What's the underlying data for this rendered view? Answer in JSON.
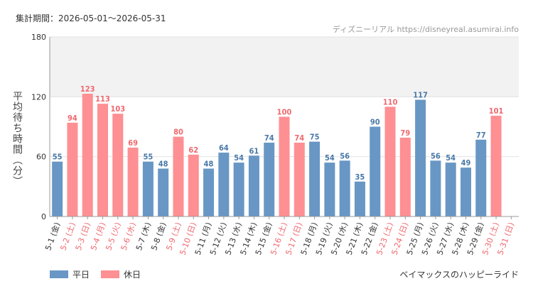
{
  "header": {
    "period_label": "集計期間：2026-05-01～2026-05-31",
    "source_label": "ディズニーリアル https://disneyreal.asumirai.info"
  },
  "footer": {
    "attraction_name": "ベイマックスのハッピーライド"
  },
  "chart_data": {
    "type": "bar",
    "ylabel": "平均待ち時間（分）",
    "ylim": [
      0,
      180
    ],
    "yticks": [
      0,
      60,
      120,
      180
    ],
    "highlight_band": [
      120,
      180
    ],
    "grid": true,
    "legend_position": "bottom-left",
    "colors": {
      "weekday": "#6897c5",
      "holiday": "#fe8f93"
    },
    "legend": [
      {
        "key": "weekday",
        "label": "平日"
      },
      {
        "key": "holiday",
        "label": "休日"
      }
    ],
    "categories": [
      "5-1 (金)",
      "5-2 (土)",
      "5-3 (日)",
      "5-4 (月)",
      "5-5 (火)",
      "5-6 (水)",
      "5-7 (木)",
      "5-8 (金)",
      "5-9 (土)",
      "5-10 (日)",
      "5-11 (月)",
      "5-12 (火)",
      "5-13 (水)",
      "5-14 (木)",
      "5-15 (金)",
      "5-16 (土)",
      "5-17 (日)",
      "5-18 (月)",
      "5-19 (火)",
      "5-20 (水)",
      "5-21 (木)",
      "5-22 (金)",
      "5-23 (土)",
      "5-24 (日)",
      "5-25 (月)",
      "5-26 (火)",
      "5-27 (水)",
      "5-28 (木)",
      "5-29 (金)",
      "5-30 (土)",
      "5-31 (日)"
    ],
    "values": [
      55,
      94,
      123,
      113,
      103,
      69,
      55,
      48,
      80,
      62,
      48,
      64,
      54,
      61,
      74,
      100,
      74,
      75,
      54,
      56,
      35,
      90,
      110,
      79,
      117,
      56,
      54,
      49,
      77,
      101,
      null
    ],
    "day_types": [
      "weekday",
      "holiday",
      "holiday",
      "holiday",
      "holiday",
      "holiday",
      "weekday",
      "weekday",
      "holiday",
      "holiday",
      "weekday",
      "weekday",
      "weekday",
      "weekday",
      "weekday",
      "holiday",
      "holiday",
      "weekday",
      "weekday",
      "weekday",
      "weekday",
      "weekday",
      "holiday",
      "holiday",
      "weekday",
      "weekday",
      "weekday",
      "weekday",
      "weekday",
      "holiday",
      "holiday"
    ]
  }
}
